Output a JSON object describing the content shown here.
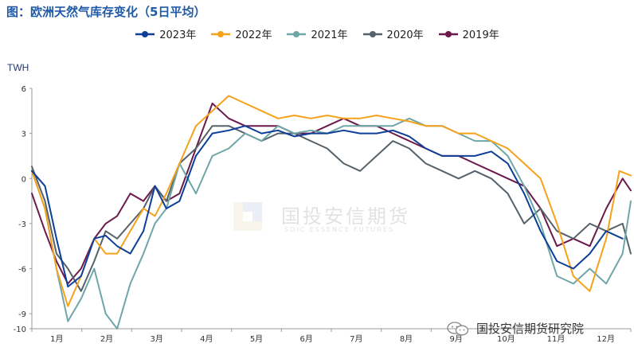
{
  "header": {
    "title": "图：欧洲天然气库存变化（5日平均）"
  },
  "watermark": {
    "cn": "国投安信期货",
    "en": "SDIC ESSENCE FUTURES"
  },
  "footer": {
    "text": "国投安信期货研究院",
    "icon": "wechat-icon"
  },
  "chart_data": {
    "type": "line",
    "title": "图：欧洲天然气库存变化（5日平均）",
    "ylabel": "TWH",
    "xlabel": "",
    "ylim": [
      -10,
      6
    ],
    "yticks": [
      6,
      3,
      0,
      -3,
      -6,
      -9,
      -10
    ],
    "xlim": [
      0,
      365
    ],
    "x_unit": "day of year",
    "month_labels": [
      "1月",
      "2月",
      "3月",
      "4月",
      "5月",
      "6月",
      "7月",
      "8月",
      "9月",
      "10月",
      "11月",
      "12月"
    ],
    "grid": false,
    "legend_position": "top",
    "series": [
      {
        "name": "2023年",
        "color": "#0d3f99",
        "x": [
          0,
          8,
          15,
          22,
          30,
          38,
          45,
          52,
          60,
          68,
          75,
          82,
          90,
          100,
          110,
          120,
          130,
          140,
          150,
          160,
          170,
          180,
          190,
          200,
          210,
          220,
          230,
          240,
          250,
          260,
          270,
          280,
          290,
          300,
          310,
          320,
          330,
          340,
          350,
          360
        ],
        "y": [
          0.5,
          -0.5,
          -4.0,
          -7.2,
          -6.5,
          -4.0,
          -3.8,
          -4.5,
          -5.0,
          -3.5,
          -0.5,
          -2.0,
          -1.5,
          1.5,
          3.0,
          3.2,
          3.5,
          3.0,
          3.2,
          2.8,
          3.0,
          3.0,
          3.2,
          3.0,
          3.0,
          3.2,
          2.8,
          2.0,
          1.5,
          1.5,
          1.5,
          1.8,
          1.0,
          -1.0,
          -3.5,
          -5.5,
          -6.0,
          -5.0,
          -3.5,
          -4.0
        ]
      },
      {
        "name": "2022年",
        "color": "#f5a21b",
        "x": [
          0,
          8,
          15,
          22,
          30,
          38,
          45,
          52,
          60,
          68,
          75,
          82,
          90,
          100,
          110,
          120,
          130,
          140,
          150,
          160,
          170,
          180,
          190,
          200,
          210,
          220,
          230,
          240,
          250,
          260,
          270,
          280,
          290,
          300,
          310,
          320,
          330,
          340,
          350,
          358,
          365
        ],
        "y": [
          0.5,
          -2.0,
          -6.0,
          -8.5,
          -6.5,
          -4.0,
          -5.0,
          -5.0,
          -3.5,
          -2.0,
          -2.5,
          -1.0,
          1.0,
          3.5,
          4.5,
          5.5,
          5.0,
          4.5,
          4.0,
          4.2,
          4.0,
          4.2,
          4.0,
          4.0,
          4.2,
          4.0,
          3.8,
          3.5,
          3.5,
          3.0,
          3.0,
          2.5,
          2.0,
          1.0,
          0.0,
          -3.0,
          -6.5,
          -7.5,
          -4.0,
          0.5,
          0.2
        ]
      },
      {
        "name": "2021年",
        "color": "#6fa6a8",
        "x": [
          0,
          8,
          15,
          22,
          30,
          38,
          45,
          52,
          60,
          68,
          75,
          82,
          90,
          100,
          110,
          120,
          130,
          140,
          150,
          160,
          170,
          180,
          190,
          200,
          210,
          220,
          230,
          240,
          250,
          260,
          270,
          280,
          290,
          300,
          310,
          320,
          330,
          340,
          350,
          360,
          365
        ],
        "y": [
          0.5,
          -2.0,
          -6.0,
          -9.5,
          -8.0,
          -6.0,
          -9.0,
          -10.0,
          -7.0,
          -5.0,
          -3.0,
          -2.0,
          1.0,
          -1.0,
          1.5,
          2.0,
          3.0,
          2.5,
          3.5,
          3.0,
          3.2,
          3.0,
          3.5,
          3.5,
          3.5,
          3.5,
          4.0,
          3.5,
          3.5,
          3.0,
          2.5,
          2.5,
          1.5,
          -0.5,
          -3.0,
          -6.5,
          -7.0,
          -6.0,
          -7.0,
          -5.0,
          -1.5
        ]
      },
      {
        "name": "2020年",
        "color": "#56626a",
        "x": [
          0,
          8,
          15,
          22,
          30,
          38,
          45,
          52,
          60,
          68,
          75,
          82,
          90,
          100,
          110,
          120,
          130,
          140,
          150,
          160,
          170,
          180,
          190,
          200,
          210,
          220,
          230,
          240,
          250,
          260,
          270,
          280,
          290,
          300,
          310,
          320,
          330,
          340,
          350,
          360,
          365
        ],
        "y": [
          0.8,
          -1.5,
          -5.0,
          -6.0,
          -7.5,
          -5.5,
          -3.5,
          -4.0,
          -3.0,
          -2.0,
          -0.5,
          -1.5,
          1.0,
          2.0,
          3.5,
          3.5,
          3.0,
          2.5,
          3.0,
          3.0,
          2.5,
          2.0,
          1.0,
          0.5,
          1.5,
          2.5,
          2.0,
          1.0,
          0.5,
          0.0,
          0.5,
          0.0,
          -1.0,
          -3.0,
          -2.0,
          -3.5,
          -4.0,
          -3.0,
          -3.5,
          -3.0,
          -5.0
        ]
      },
      {
        "name": "2019年",
        "color": "#6b1a4b",
        "x": [
          0,
          8,
          15,
          22,
          30,
          38,
          45,
          52,
          60,
          68,
          75,
          82,
          90,
          100,
          110,
          120,
          130,
          140,
          150,
          160,
          170,
          180,
          190,
          200,
          210,
          220,
          230,
          240,
          250,
          260,
          270,
          280,
          290,
          300,
          310,
          320,
          330,
          340,
          350,
          360,
          365
        ],
        "y": [
          -1.0,
          -3.5,
          -5.5,
          -7.0,
          -6.0,
          -4.0,
          -3.0,
          -2.5,
          -1.0,
          -1.5,
          -0.5,
          -1.5,
          -1.0,
          2.0,
          5.0,
          4.0,
          3.5,
          3.5,
          3.5,
          3.0,
          3.0,
          3.5,
          4.0,
          3.5,
          3.5,
          3.0,
          2.5,
          2.0,
          1.5,
          1.5,
          1.0,
          0.5,
          0.0,
          -0.5,
          -2.0,
          -4.5,
          -4.0,
          -4.5,
          -2.0,
          0.0,
          -0.8
        ]
      }
    ]
  }
}
